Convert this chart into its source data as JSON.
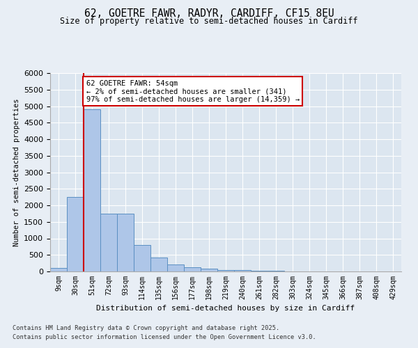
{
  "title_line1": "62, GOETRE FAWR, RADYR, CARDIFF, CF15 8EU",
  "title_line2": "Size of property relative to semi-detached houses in Cardiff",
  "xlabel": "Distribution of semi-detached houses by size in Cardiff",
  "ylabel": "Number of semi-detached properties",
  "bin_labels": [
    "9sqm",
    "30sqm",
    "51sqm",
    "72sqm",
    "93sqm",
    "114sqm",
    "135sqm",
    "156sqm",
    "177sqm",
    "198sqm",
    "219sqm",
    "240sqm",
    "261sqm",
    "282sqm",
    "303sqm",
    "324sqm",
    "345sqm",
    "366sqm",
    "387sqm",
    "408sqm",
    "429sqm"
  ],
  "bar_values": [
    100,
    2250,
    4900,
    1750,
    1750,
    800,
    430,
    210,
    130,
    80,
    50,
    40,
    30,
    15,
    10,
    5,
    5,
    5,
    5,
    5,
    0
  ],
  "bar_color": "#aec6e8",
  "bar_edge_color": "#5a8fc2",
  "red_line_x": 1.5,
  "annotation_text": "62 GOETRE FAWR: 54sqm\n← 2% of semi-detached houses are smaller (341)\n97% of semi-detached houses are larger (14,359) →",
  "annotation_box_color": "#ffffff",
  "annotation_box_edge": "#cc0000",
  "red_line_color": "#cc0000",
  "ylim": [
    0,
    6000
  ],
  "yticks": [
    0,
    500,
    1000,
    1500,
    2000,
    2500,
    3000,
    3500,
    4000,
    4500,
    5000,
    5500,
    6000
  ],
  "bg_color": "#e8eef5",
  "plot_bg_color": "#dce6f0",
  "footer_line1": "Contains HM Land Registry data © Crown copyright and database right 2025.",
  "footer_line2": "Contains public sector information licensed under the Open Government Licence v3.0."
}
